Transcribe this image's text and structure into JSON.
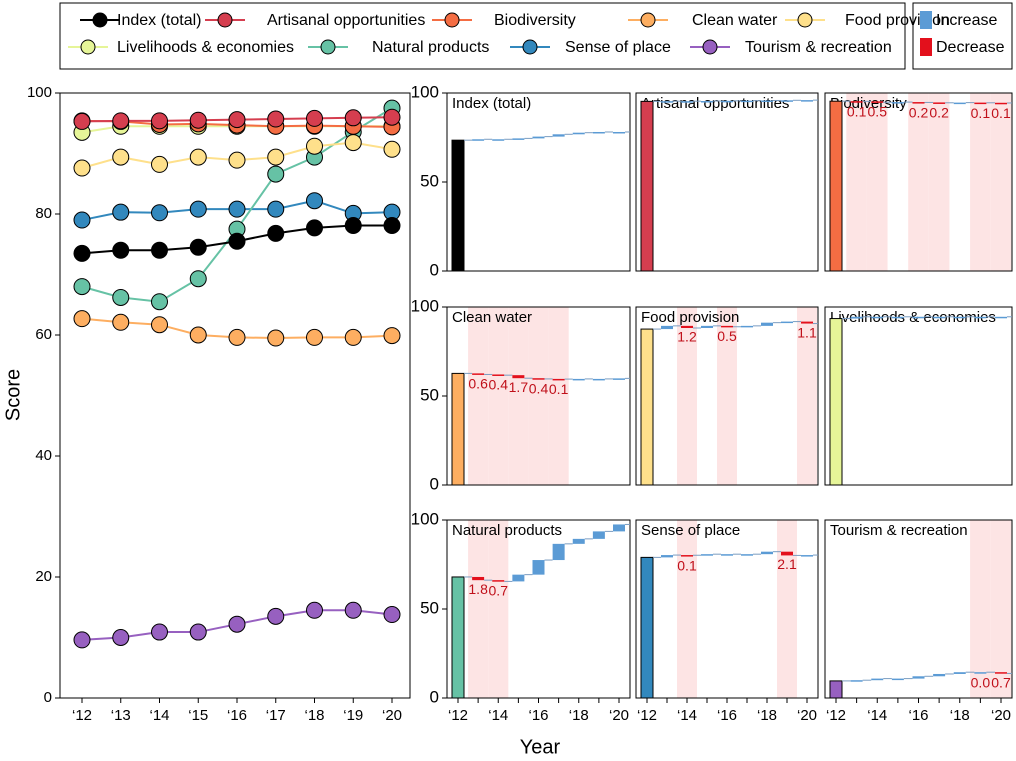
{
  "chart_data": [
    {
      "type": "line",
      "ylabel": "Score",
      "xlabel": "Year",
      "categories": [
        "‘12",
        "‘13",
        "‘14",
        "‘15",
        "‘16",
        "‘17",
        "‘18",
        "‘19",
        "‘20"
      ],
      "ylim": [
        0,
        100
      ],
      "yticks": [
        0,
        20,
        40,
        60,
        80,
        100
      ],
      "series": [
        {
          "name": "Index (total)",
          "color": "#000000",
          "values": [
            73.5,
            74.0,
            74.0,
            74.5,
            75.5,
            76.8,
            77.7,
            78.1,
            78.1
          ]
        },
        {
          "name": "Artisanal opportunities",
          "color": "#d53e4f",
          "values": [
            95.3,
            95.4,
            95.4,
            95.5,
            95.6,
            95.7,
            95.8,
            95.9,
            96.0
          ]
        },
        {
          "name": "Biodiversity",
          "color": "#f46d43",
          "values": [
            95.4,
            95.3,
            94.8,
            94.9,
            94.7,
            94.5,
            94.6,
            94.5,
            94.4
          ]
        },
        {
          "name": "Clean water",
          "color": "#fdae61",
          "values": [
            62.7,
            62.1,
            61.7,
            60.0,
            59.6,
            59.5,
            59.6,
            59.6,
            59.9
          ]
        },
        {
          "name": "Food provision",
          "color": "#fee08b",
          "values": [
            87.6,
            89.4,
            88.2,
            89.4,
            88.9,
            89.4,
            91.2,
            91.8,
            90.7
          ]
        },
        {
          "name": "Livelihoods & economies",
          "color": "#e6f598",
          "values": [
            93.5,
            94.5,
            94.5,
            94.5,
            94.5,
            94.5,
            94.5,
            94.5,
            94.5
          ]
        },
        {
          "name": "Natural products",
          "color": "#66c2a5",
          "values": [
            68.0,
            66.2,
            65.5,
            69.3,
            77.5,
            86.6,
            89.4,
            93.6,
            97.5
          ]
        },
        {
          "name": "Sense of place",
          "color": "#3288bd",
          "values": [
            79.0,
            80.3,
            80.2,
            80.8,
            80.8,
            80.8,
            82.2,
            80.1,
            80.3
          ]
        },
        {
          "name": "Tourism & recreation",
          "color": "#9760c0",
          "values": [
            9.6,
            10.0,
            10.9,
            10.9,
            12.2,
            13.5,
            14.5,
            14.5,
            13.8
          ]
        }
      ]
    },
    {
      "type": "waterfall",
      "title": "Index (total)",
      "color": "#000000",
      "ylim": [
        0,
        100
      ],
      "yticks": [
        0,
        50,
        100
      ],
      "values": [
        73.5,
        74.0,
        74.0,
        74.5,
        75.5,
        76.8,
        77.7,
        78.1,
        78.1
      ],
      "decrease_labels": [
        null,
        null,
        null,
        null,
        null,
        null,
        null,
        null
      ]
    },
    {
      "type": "waterfall",
      "title": "Artisanal opportunities",
      "color": "#d53e4f",
      "ylim": [
        0,
        100
      ],
      "values": [
        95.3,
        95.4,
        95.4,
        95.5,
        95.6,
        95.7,
        95.8,
        95.9,
        96.0
      ],
      "decrease_labels": [
        null,
        null,
        null,
        null,
        null,
        null,
        null,
        null
      ]
    },
    {
      "type": "waterfall",
      "title": "Biodiversity",
      "color": "#f46d43",
      "ylim": [
        0,
        100
      ],
      "values": [
        95.4,
        95.3,
        94.8,
        94.9,
        94.7,
        94.5,
        94.6,
        94.5,
        94.4
      ],
      "decrease_labels": [
        "0.1",
        "0.5",
        null,
        "0.2",
        "0.2",
        null,
        "0.1",
        "0.1"
      ]
    },
    {
      "type": "waterfall",
      "title": "Clean water",
      "color": "#fdae61",
      "ylim": [
        0,
        100
      ],
      "yticks": [
        0,
        50,
        100
      ],
      "values": [
        62.7,
        62.1,
        61.7,
        60.0,
        59.6,
        59.5,
        59.6,
        59.6,
        59.9
      ],
      "decrease_labels": [
        "0.6",
        "0.4",
        "1.7",
        "0.4",
        "0.1",
        null,
        null,
        null
      ]
    },
    {
      "type": "waterfall",
      "title": "Food provision",
      "color": "#fee08b",
      "ylim": [
        0,
        100
      ],
      "values": [
        87.6,
        89.4,
        88.2,
        89.4,
        88.9,
        89.4,
        91.2,
        91.8,
        90.7
      ],
      "decrease_labels": [
        null,
        "1.2",
        null,
        "0.5",
        null,
        null,
        null,
        "1.1"
      ]
    },
    {
      "type": "waterfall",
      "title": "Livelihoods & economies",
      "color": "#e6f598",
      "ylim": [
        0,
        100
      ],
      "values": [
        93.5,
        94.5,
        94.5,
        94.5,
        94.5,
        94.5,
        94.5,
        94.5,
        94.5
      ],
      "decrease_labels": [
        null,
        null,
        null,
        null,
        null,
        null,
        null,
        null
      ]
    },
    {
      "type": "waterfall",
      "title": "Natural products",
      "color": "#66c2a5",
      "ylim": [
        0,
        100
      ],
      "yticks": [
        0,
        50,
        100
      ],
      "categories": [
        "‘12",
        null,
        "‘14",
        null,
        "‘16",
        null,
        "‘18",
        null,
        "‘20"
      ],
      "values": [
        68.0,
        66.2,
        65.5,
        69.3,
        77.5,
        86.6,
        89.4,
        93.6,
        97.5
      ],
      "decrease_labels": [
        "1.8",
        "0.7",
        null,
        null,
        null,
        null,
        null,
        null
      ]
    },
    {
      "type": "waterfall",
      "title": "Sense of place",
      "color": "#3288bd",
      "ylim": [
        0,
        100
      ],
      "categories": [
        "‘12",
        null,
        "‘14",
        null,
        "‘16",
        null,
        "‘18",
        null,
        "‘20"
      ],
      "values": [
        79.0,
        80.3,
        80.2,
        80.8,
        80.8,
        80.8,
        82.2,
        80.1,
        80.3
      ],
      "decrease_labels": [
        null,
        "0.1",
        null,
        null,
        null,
        null,
        "2.1",
        null
      ]
    },
    {
      "type": "waterfall",
      "title": "Tourism & recreation",
      "color": "#9760c0",
      "ylim": [
        0,
        100
      ],
      "categories": [
        "‘12",
        null,
        "‘14",
        null,
        "‘16",
        null,
        "‘18",
        null,
        "‘20"
      ],
      "values": [
        9.6,
        10.0,
        10.9,
        10.9,
        12.2,
        13.5,
        14.5,
        14.5,
        13.8
      ],
      "decrease_labels": [
        null,
        null,
        null,
        null,
        null,
        null,
        "0.0",
        "0.7"
      ]
    }
  ],
  "change_legend": [
    {
      "name": "Increase",
      "color": "#5b9bd5"
    },
    {
      "name": "Decrease",
      "color": "#e3101c"
    }
  ]
}
